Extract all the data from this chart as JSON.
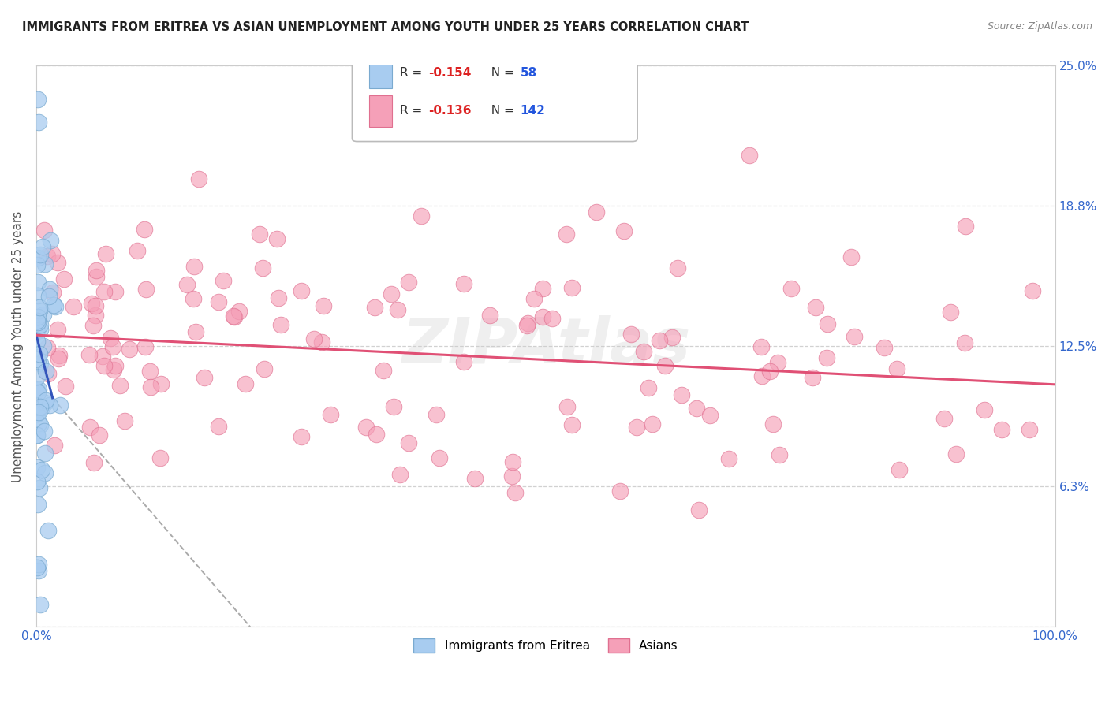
{
  "title": "IMMIGRANTS FROM ERITREA VS ASIAN UNEMPLOYMENT AMONG YOUTH UNDER 25 YEARS CORRELATION CHART",
  "source": "Source: ZipAtlas.com",
  "ylabel": "Unemployment Among Youth under 25 years",
  "watermark": "ZIPAtlas",
  "xlim": [
    0,
    100
  ],
  "ylim": [
    0,
    25
  ],
  "yticks": [
    0,
    6.25,
    12.5,
    18.75,
    25.0
  ],
  "ytick_labels_right": [
    "6.3%",
    "12.5%",
    "18.8%",
    "25.0%"
  ],
  "yticks_right": [
    6.25,
    12.5,
    18.75,
    25.0
  ],
  "background_color": "#ffffff",
  "grid_color": "#cccccc",
  "blue_color": "#a8ccf0",
  "blue_edge": "#7aaad0",
  "pink_color": "#f5a0b8",
  "pink_edge": "#e07090",
  "blue_trend_color": "#3355bb",
  "pink_trend_color": "#e05075",
  "dash_color": "#aaaaaa",
  "legend_box_color": "#dddddd",
  "R1": -0.154,
  "N1": 58,
  "R2": -0.136,
  "N2": 142,
  "R_color": "#dd2222",
  "N_color": "#2255dd",
  "title_color": "#222222",
  "source_color": "#888888",
  "axis_label_color": "#555555",
  "tick_color": "#3366cc"
}
